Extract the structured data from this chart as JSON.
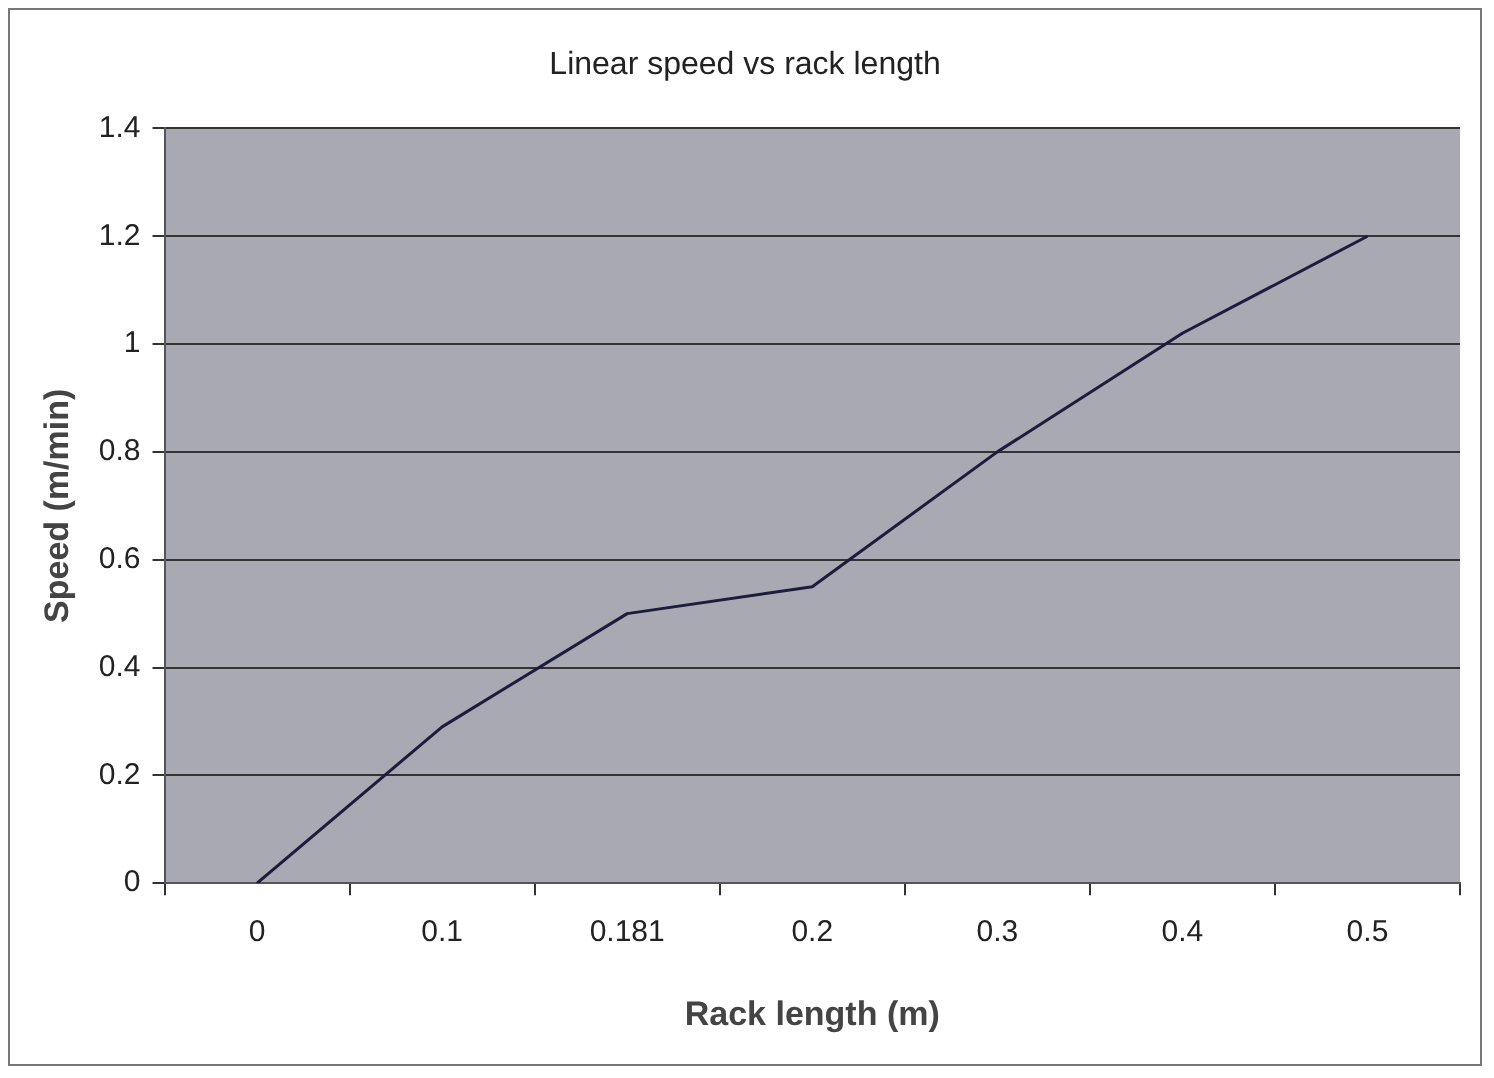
{
  "chart_data": {
    "type": "line",
    "title": "Linear speed vs rack length",
    "xlabel": "Rack length (m)",
    "ylabel": "Speed (m/min)",
    "categories": [
      "0",
      "0.1",
      "0.181",
      "0.2",
      "0.3",
      "0.4",
      "0.5"
    ],
    "series": [
      {
        "color": "#1c1c3c",
        "values": [
          0,
          0.29,
          0.5,
          0.55,
          0.8,
          1.02,
          1.2
        ]
      }
    ],
    "ylim": [
      0,
      1.4
    ],
    "yticks": [
      0,
      0.2,
      0.4,
      0.6,
      0.8,
      1,
      1.2,
      1.4
    ],
    "grid": "y",
    "legend": false,
    "marker": "none",
    "line_style": "solid"
  }
}
